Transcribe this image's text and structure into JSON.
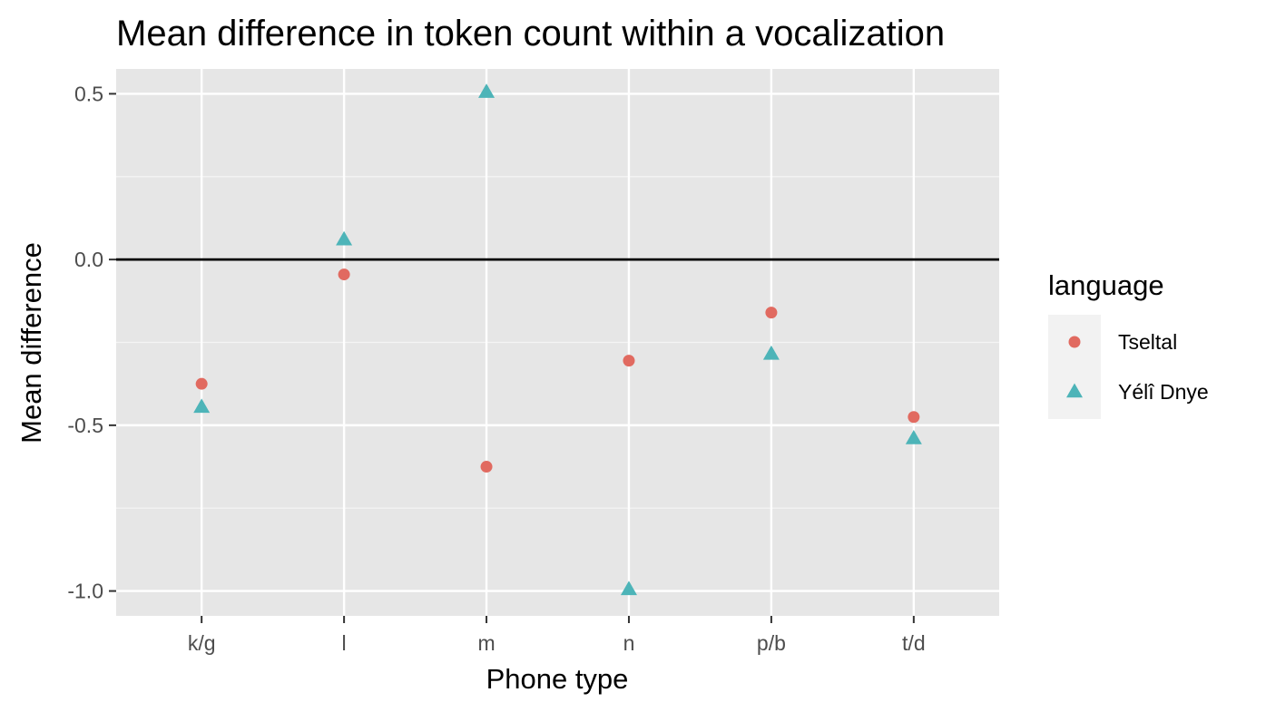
{
  "chart_data": {
    "type": "scatter",
    "title": "Mean difference in token count within a vocalization",
    "xlabel": "Phone type",
    "ylabel": "Mean difference",
    "categories": [
      "k/g",
      "l",
      "m",
      "n",
      "p/b",
      "t/d"
    ],
    "y_ticks": [
      {
        "value": 0.5,
        "label": "0.5"
      },
      {
        "value": 0.0,
        "label": "0.0"
      },
      {
        "value": -0.5,
        "label": "-0.5"
      },
      {
        "value": -1.0,
        "label": "-1.0"
      }
    ],
    "ylim": [
      -1.075,
      0.575
    ],
    "grid": true,
    "reference_line": {
      "y": 0
    },
    "legend": {
      "title": "language",
      "position": "right"
    },
    "series": [
      {
        "name": "Tseltal",
        "shape": "circle",
        "color": "#E16A60",
        "values": [
          -0.375,
          -0.045,
          -0.625,
          -0.305,
          -0.16,
          -0.475
        ]
      },
      {
        "name": "Yélî Dnye",
        "shape": "triangle",
        "color": "#4DB4B8",
        "values": [
          -0.445,
          0.06,
          0.505,
          -0.995,
          -0.285,
          -0.54
        ]
      }
    ]
  }
}
